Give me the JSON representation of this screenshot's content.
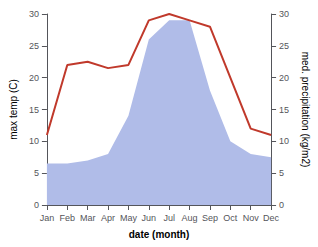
{
  "chart_data": {
    "type": "line",
    "xlabel": "date (month)",
    "ylabel": "max temp (C)",
    "y2label": "med. precipitation (kg/m2)",
    "categories": [
      "Jan",
      "Feb",
      "Mar",
      "Apr",
      "May",
      "Jun",
      "Jul",
      "Aug",
      "Sep",
      "Oct",
      "Nov",
      "Dec"
    ],
    "series": [
      {
        "type": "area",
        "axis": "y2",
        "color": "#b0bce8",
        "values": [
          6.5,
          6.5,
          7,
          8,
          14,
          26,
          29,
          29,
          18,
          10,
          8,
          7.5
        ]
      },
      {
        "type": "line",
        "color": "#c0392b",
        "values": [
          11,
          22,
          22.5,
          21.5,
          22,
          29,
          30,
          29,
          28,
          20,
          12,
          11
        ]
      }
    ],
    "ylim": [
      0,
      30
    ],
    "yticks": [
      0,
      5,
      10,
      15,
      20,
      25,
      30
    ],
    "y2lim": [
      0,
      30
    ],
    "y2ticks": [
      0,
      5,
      10,
      15,
      20,
      25,
      30
    ],
    "grid": false
  }
}
